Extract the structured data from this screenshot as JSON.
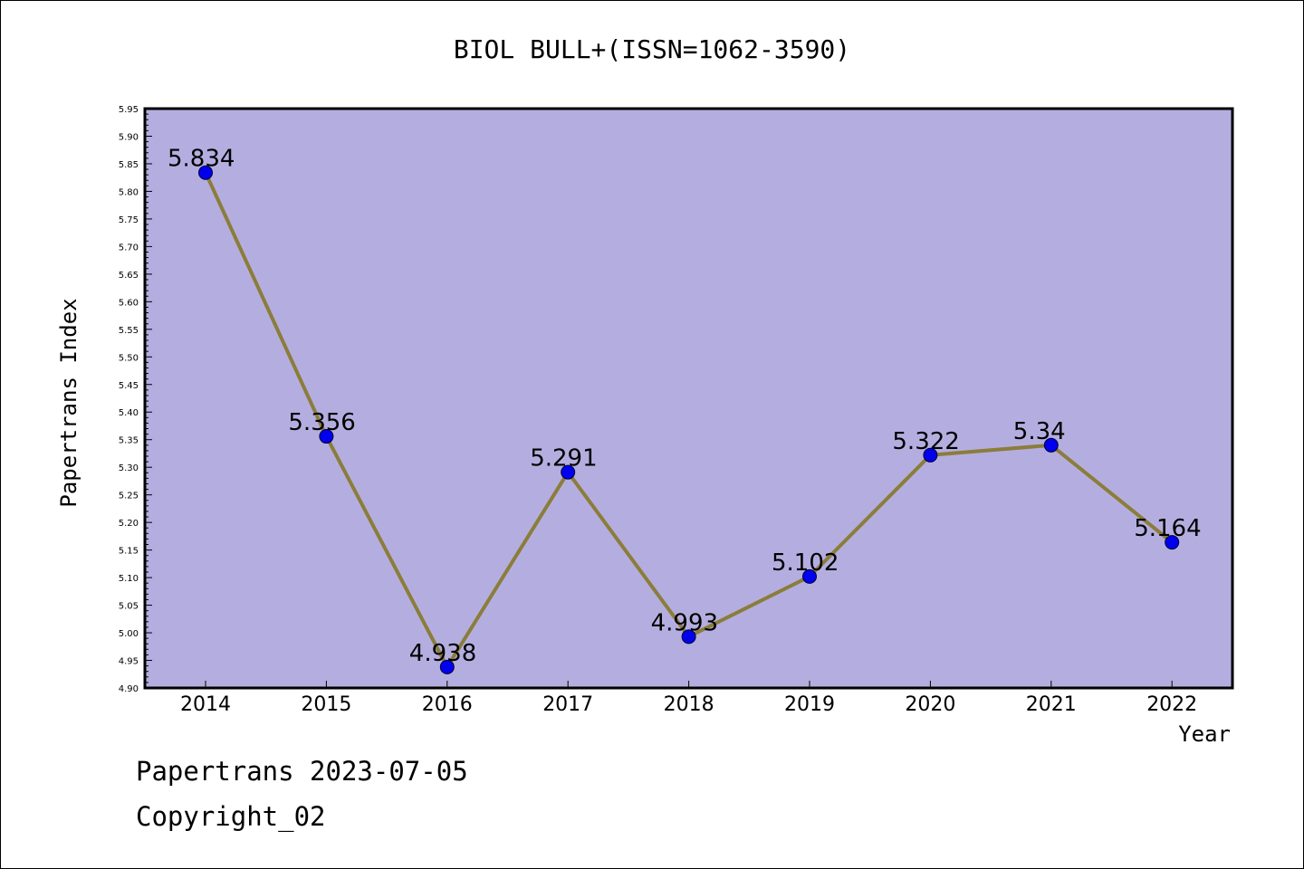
{
  "chart_data": {
    "type": "line",
    "title": "BIOL BULL+(ISSN=1062-3590)",
    "xlabel": "Year",
    "ylabel": "Papertrans Index",
    "categories": [
      "2014",
      "2015",
      "2016",
      "2017",
      "2018",
      "2019",
      "2020",
      "2021",
      "2022"
    ],
    "values": [
      5.834,
      5.356,
      4.938,
      5.291,
      4.993,
      5.102,
      5.322,
      5.34,
      5.164
    ],
    "data_labels": [
      "5.834",
      "5.356",
      "4.938",
      "5.291",
      "4.993",
      "5.102",
      "5.322",
      "5.34",
      "5.164"
    ],
    "ylim": [
      4.9,
      5.95
    ],
    "yticks": [
      "4.90",
      "4.95",
      "5.00",
      "5.05",
      "5.10",
      "5.15",
      "5.20",
      "5.25",
      "5.30",
      "5.35",
      "5.40",
      "5.45",
      "5.50",
      "5.55",
      "5.60",
      "5.65",
      "5.70",
      "5.75",
      "5.80",
      "5.85",
      "5.90",
      "5.95"
    ],
    "grid": false,
    "colors": {
      "plot_background": "#b4aee0",
      "line": "#8b7d3a",
      "marker": "#0000ee"
    }
  },
  "footer": {
    "line1": "Papertrans 2023-07-05",
    "line2": "Copyright_02"
  }
}
